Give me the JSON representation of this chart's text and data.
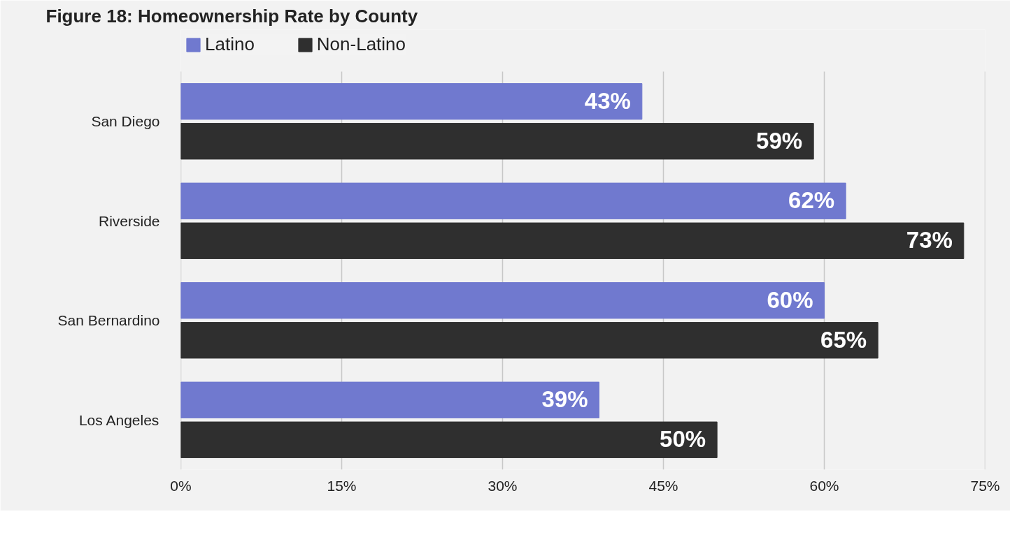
{
  "chart_data": {
    "type": "bar",
    "orientation": "horizontal",
    "title": "Figure 18: Homeownership Rate by County",
    "categories": [
      "San Diego",
      "Riverside",
      "San Bernardino",
      "Los Angeles"
    ],
    "series": [
      {
        "name": "Latino",
        "color": "#7079cf",
        "values": [
          43,
          62,
          60,
          39
        ],
        "value_labels": [
          "43%",
          "62%",
          "60%",
          "39%"
        ]
      },
      {
        "name": "Non-Latino",
        "color": "#2f2f2f",
        "values": [
          59,
          73,
          65,
          50
        ],
        "value_labels": [
          "59%",
          "73%",
          "65%",
          "50%"
        ]
      }
    ],
    "xlim": [
      0,
      75
    ],
    "xticks": [
      {
        "value": 0,
        "label": "0%"
      },
      {
        "value": 15,
        "label": "15%"
      },
      {
        "value": 30,
        "label": "30%"
      },
      {
        "value": 45,
        "label": "45%"
      },
      {
        "value": 60,
        "label": "60%"
      },
      {
        "value": 75,
        "label": "75%"
      }
    ],
    "grid": "x",
    "legend": "top left"
  }
}
